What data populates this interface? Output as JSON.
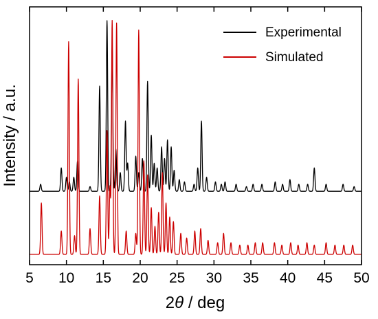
{
  "chart_data": {
    "type": "line",
    "xlabel_prefix": "2",
    "xlabel_symbol": "θ",
    "xlabel_suffix": " / deg",
    "ylabel": "Intensity / a.u.",
    "xlim": [
      5,
      50
    ],
    "xticks": [
      5,
      10,
      15,
      20,
      25,
      30,
      35,
      40,
      45,
      50
    ],
    "y_ticks_labeled": false,
    "legend_position": "top-right",
    "series": [
      {
        "name": "Experimental",
        "color": "#000000",
        "baseline": 0.27,
        "peaks": [
          [
            6.5,
            0.03
          ],
          [
            9.3,
            0.1
          ],
          [
            10.0,
            0.06
          ],
          [
            10.4,
            0.04
          ],
          [
            11.0,
            0.06
          ],
          [
            11.5,
            0.13
          ],
          [
            13.2,
            0.02
          ],
          [
            14.5,
            0.45
          ],
          [
            15.5,
            0.73
          ],
          [
            16.2,
            0.62
          ],
          [
            16.7,
            0.18
          ],
          [
            17.3,
            0.08
          ],
          [
            18.0,
            0.3
          ],
          [
            18.3,
            0.12
          ],
          [
            19.4,
            0.15
          ],
          [
            19.8,
            0.08
          ],
          [
            20.3,
            0.14
          ],
          [
            21.0,
            0.47
          ],
          [
            21.5,
            0.24
          ],
          [
            21.9,
            0.12
          ],
          [
            22.3,
            0.1
          ],
          [
            22.9,
            0.19
          ],
          [
            23.3,
            0.14
          ],
          [
            23.7,
            0.22
          ],
          [
            24.2,
            0.19
          ],
          [
            24.6,
            0.09
          ],
          [
            25.3,
            0.05
          ],
          [
            26.0,
            0.04
          ],
          [
            27.3,
            0.03
          ],
          [
            27.8,
            0.1
          ],
          [
            28.3,
            0.3
          ],
          [
            29.0,
            0.06
          ],
          [
            30.2,
            0.04
          ],
          [
            31.0,
            0.03
          ],
          [
            31.5,
            0.04
          ],
          [
            33.0,
            0.03
          ],
          [
            34.4,
            0.02
          ],
          [
            35.3,
            0.03
          ],
          [
            36.5,
            0.03
          ],
          [
            38.3,
            0.04
          ],
          [
            39.3,
            0.03
          ],
          [
            40.3,
            0.05
          ],
          [
            41.5,
            0.03
          ],
          [
            42.7,
            0.03
          ],
          [
            43.6,
            0.1
          ],
          [
            45.2,
            0.03
          ],
          [
            47.5,
            0.03
          ],
          [
            49.0,
            0.02
          ]
        ]
      },
      {
        "name": "Simulated",
        "color": "#cc0000",
        "baseline": 0.0,
        "peaks": [
          [
            6.6,
            0.22
          ],
          [
            9.3,
            0.1
          ],
          [
            10.3,
            0.91
          ],
          [
            11.1,
            0.08
          ],
          [
            11.6,
            0.75
          ],
          [
            13.2,
            0.11
          ],
          [
            14.5,
            0.25
          ],
          [
            15.5,
            0.53
          ],
          [
            15.9,
            0.29
          ],
          [
            16.2,
            1.0
          ],
          [
            16.8,
            0.99
          ],
          [
            18.1,
            0.1
          ],
          [
            19.4,
            0.09
          ],
          [
            19.8,
            0.96
          ],
          [
            20.5,
            0.4
          ],
          [
            21.0,
            0.34
          ],
          [
            21.5,
            0.2
          ],
          [
            22.0,
            0.12
          ],
          [
            22.5,
            0.18
          ],
          [
            23.0,
            0.35
          ],
          [
            23.5,
            0.22
          ],
          [
            24.0,
            0.16
          ],
          [
            24.5,
            0.14
          ],
          [
            25.5,
            0.09
          ],
          [
            26.3,
            0.07
          ],
          [
            27.4,
            0.1
          ],
          [
            28.2,
            0.11
          ],
          [
            29.2,
            0.06
          ],
          [
            30.5,
            0.05
          ],
          [
            31.3,
            0.09
          ],
          [
            32.3,
            0.05
          ],
          [
            33.5,
            0.04
          ],
          [
            34.6,
            0.04
          ],
          [
            35.6,
            0.05
          ],
          [
            36.6,
            0.05
          ],
          [
            38.2,
            0.05
          ],
          [
            39.2,
            0.04
          ],
          [
            40.4,
            0.05
          ],
          [
            41.4,
            0.04
          ],
          [
            42.6,
            0.05
          ],
          [
            43.6,
            0.04
          ],
          [
            45.2,
            0.05
          ],
          [
            46.4,
            0.04
          ],
          [
            47.6,
            0.04
          ],
          [
            48.8,
            0.04
          ]
        ]
      }
    ]
  }
}
